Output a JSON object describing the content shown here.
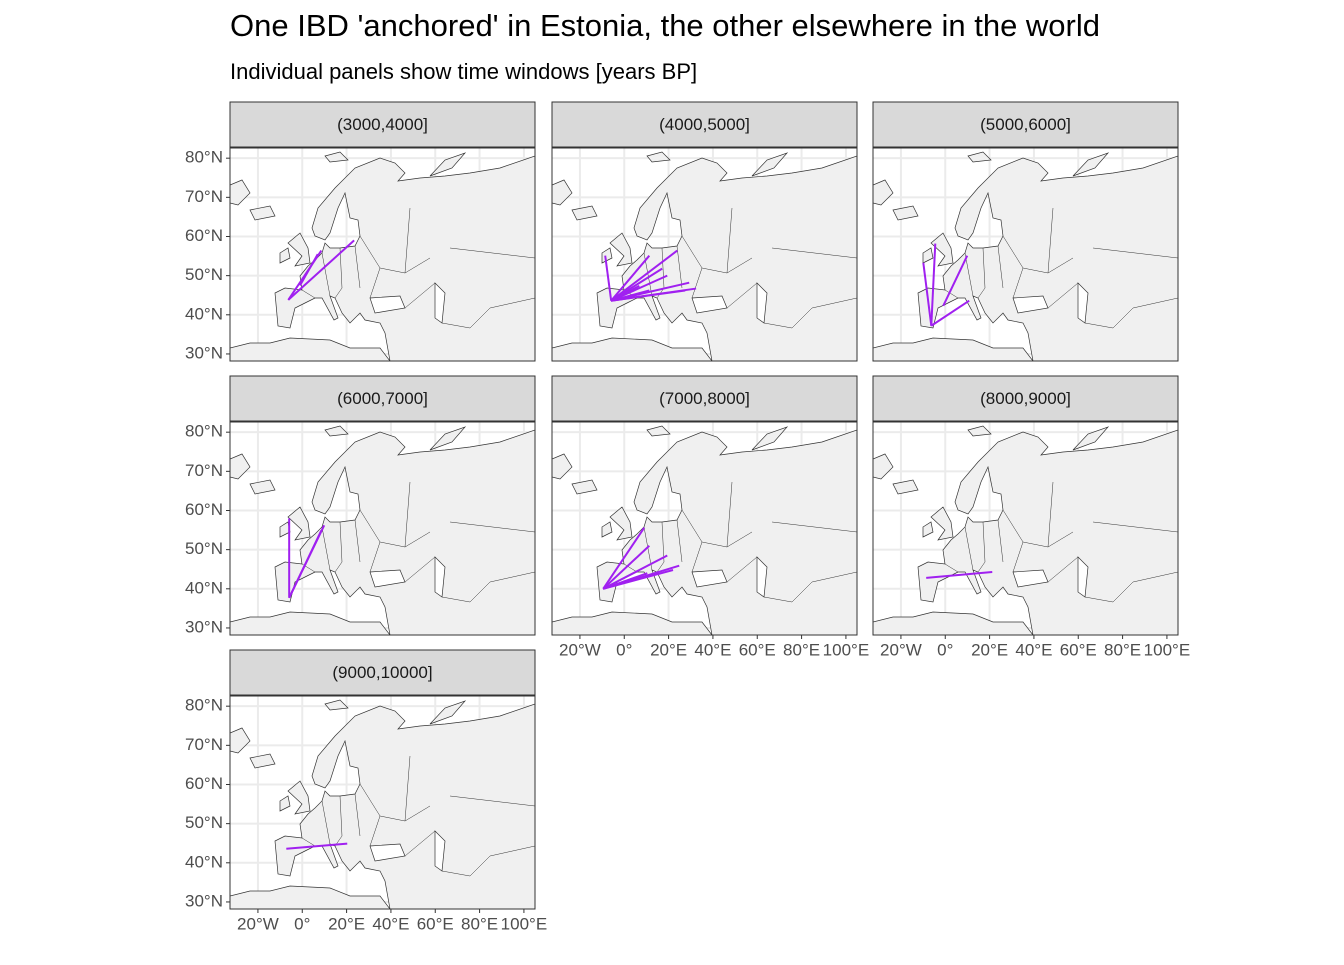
{
  "chart_data": {
    "type": "map",
    "title": "One IBD 'anchored' in Estonia, the other elsewhere in the world",
    "subtitle": "Individual panels show time windows [years BP]",
    "xlim": [
      -32.6,
      105
    ],
    "ylim": [
      28.2,
      82.6
    ],
    "xticks": [
      {
        "value": -20,
        "label": "20°W"
      },
      {
        "value": 0,
        "label": "0°"
      },
      {
        "value": 20,
        "label": "20°E"
      },
      {
        "value": 40,
        "label": "40°E"
      },
      {
        "value": 60,
        "label": "60°E"
      },
      {
        "value": 80,
        "label": "80°E"
      },
      {
        "value": 100,
        "label": "100°E"
      }
    ],
    "yticks": [
      {
        "value": 30,
        "label": "30°N"
      },
      {
        "value": 40,
        "label": "40°N"
      },
      {
        "value": 50,
        "label": "50°N"
      },
      {
        "value": 60,
        "label": "60°N"
      },
      {
        "value": 70,
        "label": "70°N"
      },
      {
        "value": 80,
        "label": "80°N"
      }
    ],
    "grid": true,
    "color": "#a020f0",
    "panels": [
      {
        "label": "(3000,4000]",
        "segments": [
          {
            "lon": [
              -6.3,
              23.4
            ],
            "lat": [
              43.8,
              59.0
            ]
          },
          {
            "lon": [
              -6.3,
              8.6
            ],
            "lat": [
              43.8,
              56.4
            ]
          },
          {
            "lon": [
              -1.0,
              7.0
            ],
            "lat": [
              47.5,
              55.5
            ]
          }
        ]
      },
      {
        "label": "(4000,5000]",
        "segments": [
          {
            "lon": [
              -5.9,
              -8.6
            ],
            "lat": [
              43.6,
              55.1
            ]
          },
          {
            "lon": [
              -5.9,
              11.3
            ],
            "lat": [
              43.6,
              55.1
            ]
          },
          {
            "lon": [
              -5.9,
              23.9
            ],
            "lat": [
              43.6,
              56.4
            ]
          },
          {
            "lon": [
              -5.9,
              17.1
            ],
            "lat": [
              43.6,
              51.8
            ]
          },
          {
            "lon": [
              -5.9,
              19.4
            ],
            "lat": [
              43.6,
              50.0
            ]
          },
          {
            "lon": [
              -5.9,
              29.3
            ],
            "lat": [
              43.6,
              48.2
            ]
          },
          {
            "lon": [
              -5.9,
              32.4
            ],
            "lat": [
              43.6,
              46.7
            ]
          },
          {
            "lon": [
              -5.9,
              27.5
            ],
            "lat": [
              43.6,
              46.2
            ]
          },
          {
            "lon": [
              -5.9,
              11.3
            ],
            "lat": [
              43.6,
              46.2
            ]
          },
          {
            "lon": [
              -5.9,
              6.8
            ],
            "lat": [
              43.6,
              47.4
            ]
          }
        ]
      },
      {
        "label": "(5000,6000]",
        "segments": [
          {
            "lon": [
              -6.3,
              -4.5
            ],
            "lat": [
              37.2,
              58.2
            ]
          },
          {
            "lon": [
              -6.3,
              -9.9
            ],
            "lat": [
              37.2,
              53.3
            ]
          },
          {
            "lon": [
              -6.3,
              10.8
            ],
            "lat": [
              37.2,
              43.6
            ]
          },
          {
            "lon": [
              -0.9,
              9.9
            ],
            "lat": [
              42.3,
              55.1
            ]
          }
        ]
      },
      {
        "label": "(6000,7000]",
        "segments": [
          {
            "lon": [
              -5.9,
              -5.9
            ],
            "lat": [
              37.7,
              58.0
            ]
          },
          {
            "lon": [
              -5.9,
              9.9
            ],
            "lat": [
              37.7,
              56.2
            ]
          },
          {
            "lon": [
              -5.9,
              8.6
            ],
            "lat": [
              37.7,
              54.9
            ]
          }
        ]
      },
      {
        "label": "(7000,8000]",
        "segments": [
          {
            "lon": [
              -9.5,
              9.0
            ],
            "lat": [
              40.0,
              55.6
            ]
          },
          {
            "lon": [
              -9.5,
              11.3
            ],
            "lat": [
              40.0,
              51.0
            ]
          },
          {
            "lon": [
              -9.5,
              19.4
            ],
            "lat": [
              40.0,
              48.5
            ]
          },
          {
            "lon": [
              -9.5,
              24.8
            ],
            "lat": [
              40.0,
              45.9
            ]
          },
          {
            "lon": [
              -9.5,
              10.4
            ],
            "lat": [
              40.0,
              44.0
            ]
          },
          {
            "lon": [
              -9.5,
              22.0
            ],
            "lat": [
              40.0,
              44.8
            ]
          }
        ]
      },
      {
        "label": "(8000,9000]",
        "segments": [
          {
            "lon": [
              -8.6,
              21.2
            ],
            "lat": [
              42.8,
              44.3
            ]
          }
        ]
      },
      {
        "label": "(9000,10000]",
        "segments": [
          {
            "lon": [
              -7.2,
              20.3
            ],
            "lat": [
              43.6,
              44.9
            ]
          }
        ]
      }
    ]
  }
}
